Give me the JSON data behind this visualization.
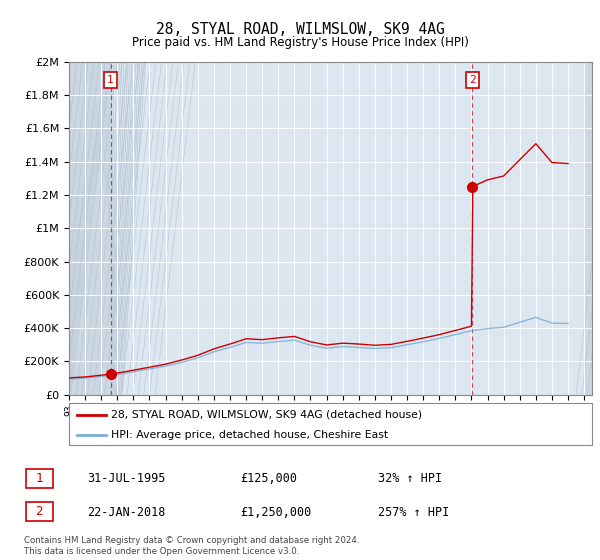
{
  "title": "28, STYAL ROAD, WILMSLOW, SK9 4AG",
  "subtitle": "Price paid vs. HM Land Registry's House Price Index (HPI)",
  "legend_label_property": "28, STYAL ROAD, WILMSLOW, SK9 4AG (detached house)",
  "legend_label_hpi": "HPI: Average price, detached house, Cheshire East",
  "footer": "Contains HM Land Registry data © Crown copyright and database right 2024.\nThis data is licensed under the Open Government Licence v3.0.",
  "transaction1_date": "31-JUL-1995",
  "transaction1_price": "£125,000",
  "transaction1_hpi": "32% ↑ HPI",
  "transaction1_label": "1",
  "transaction1_year": 1995.58,
  "transaction1_value": 125000,
  "transaction2_date": "22-JAN-2018",
  "transaction2_price": "£1,250,000",
  "transaction2_hpi": "257% ↑ HPI",
  "transaction2_label": "2",
  "transaction2_year": 2018.06,
  "transaction2_value": 1250000,
  "property_color": "#cc0000",
  "hpi_color": "#7bafd4",
  "dashed_line_color": "#cc0000",
  "background_color": "#dce6f0",
  "hatch_color": "#c8d4e0",
  "ylim": [
    0,
    2000000
  ],
  "xlim_start": 1993,
  "xlim_end": 2025.5,
  "transaction1_marker_size": 7,
  "transaction2_marker_size": 7
}
